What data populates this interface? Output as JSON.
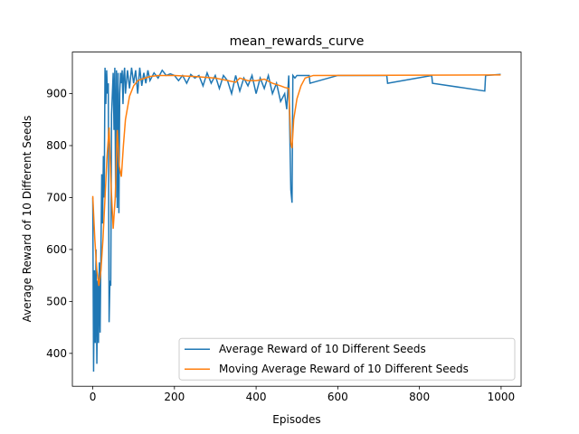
{
  "chart_data": {
    "type": "line",
    "title": "mean_rewards_curve",
    "xlabel": "Episodes",
    "ylabel": "Average Reward of 10 Different Seeds",
    "xlim": [
      -49.95,
      1048.95
    ],
    "xticks": [
      0,
      200,
      400,
      600,
      800,
      1000
    ],
    "ylim": [
      336.7,
      980
    ],
    "yticks": [
      400,
      500,
      600,
      700,
      800,
      900
    ],
    "legend": "lower right",
    "series": [
      {
        "name": "Average Reward of 10 Different Seeds",
        "color": "#1f77b4",
        "x": [
          0,
          2,
          4,
          6,
          8,
          10,
          12,
          14,
          16,
          18,
          20,
          22,
          24,
          26,
          28,
          30,
          32,
          34,
          36,
          38,
          40,
          42,
          44,
          46,
          48,
          50,
          52,
          54,
          56,
          58,
          60,
          62,
          64,
          66,
          68,
          70,
          72,
          74,
          76,
          78,
          80,
          85,
          90,
          95,
          100,
          105,
          110,
          115,
          120,
          125,
          130,
          135,
          140,
          150,
          160,
          170,
          180,
          190,
          200,
          210,
          220,
          230,
          240,
          250,
          260,
          270,
          280,
          290,
          300,
          310,
          320,
          330,
          340,
          350,
          360,
          370,
          380,
          390,
          400,
          410,
          420,
          430,
          440,
          450,
          460,
          470,
          475,
          480,
          485,
          488,
          490,
          495,
          500,
          530,
          532,
          600,
          720,
          722,
          830,
          832,
          960,
          962,
          999
        ],
        "values": [
          700,
          365,
          560,
          420,
          600,
          380,
          540,
          420,
          575,
          440,
          600,
          745,
          650,
          780,
          700,
          950,
          880,
          945,
          900,
          920,
          460,
          540,
          530,
          860,
          900,
          940,
          830,
          950,
          700,
          945,
          680,
          940,
          670,
          900,
          940,
          920,
          945,
          880,
          935,
          950,
          900,
          945,
          910,
          950,
          920,
          945,
          900,
          950,
          915,
          940,
          920,
          945,
          925,
          940,
          930,
          945,
          935,
          938,
          935,
          925,
          935,
          920,
          937,
          930,
          935,
          915,
          940,
          920,
          935,
          910,
          935,
          925,
          900,
          935,
          905,
          930,
          915,
          935,
          900,
          930,
          910,
          935,
          900,
          920,
          885,
          900,
          870,
          935,
          715,
          690,
          935,
          930,
          935,
          935,
          920,
          935,
          935,
          920,
          935,
          920,
          905,
          935,
          937
        ]
      },
      {
        "name": "Moving Average Reward of 10 Different Seeds",
        "color": "#ff7f0e",
        "x": [
          0,
          5,
          10,
          15,
          20,
          25,
          30,
          35,
          40,
          45,
          50,
          55,
          60,
          65,
          70,
          75,
          80,
          90,
          100,
          110,
          120,
          140,
          160,
          200,
          250,
          300,
          350,
          360,
          380,
          400,
          420,
          440,
          460,
          470,
          480,
          485,
          488,
          492,
          500,
          510,
          520,
          540,
          999
        ],
        "values": [
          703,
          620,
          560,
          530,
          560,
          620,
          700,
          780,
          835,
          720,
          640,
          700,
          830,
          760,
          740,
          800,
          850,
          895,
          915,
          925,
          928,
          933,
          935,
          935,
          933,
          930,
          922,
          930,
          925,
          925,
          928,
          920,
          915,
          912,
          910,
          805,
          795,
          850,
          890,
          915,
          930,
          935,
          936
        ]
      }
    ]
  }
}
